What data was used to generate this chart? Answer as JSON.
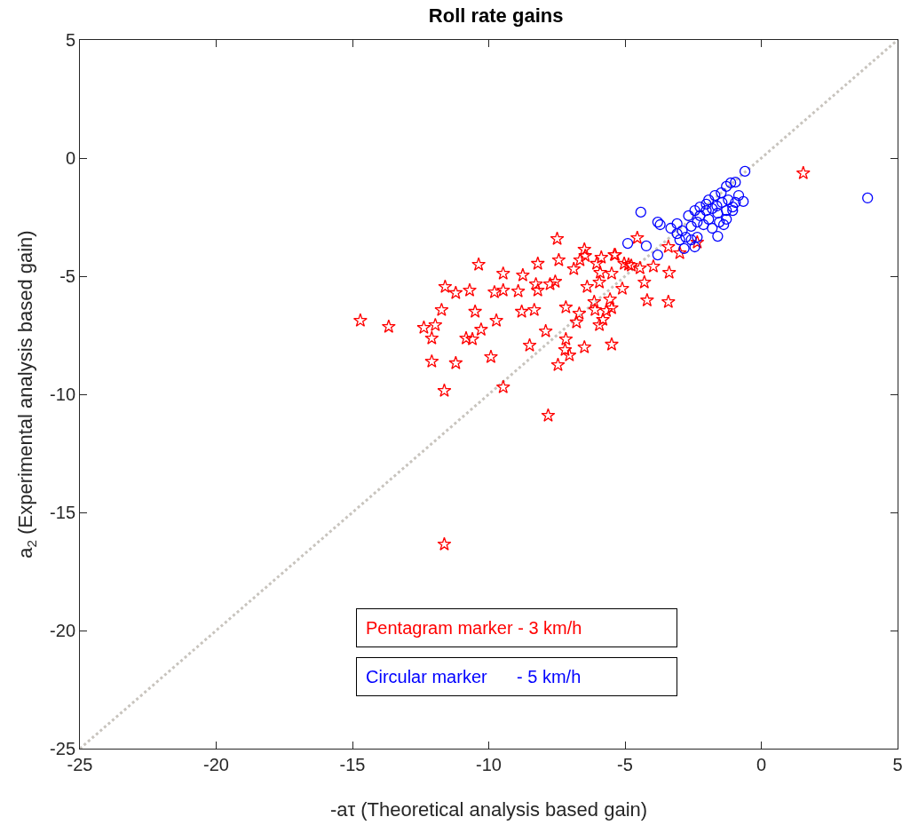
{
  "chart_data": {
    "type": "scatter",
    "title": "Roll rate gains",
    "xlabel": "-aτ (Theoretical analysis based gain)",
    "ylabel": "a$_{2}$ (Experimental analysis based gain)",
    "xlim": [
      -25,
      5
    ],
    "xticks": [
      -25,
      -20,
      -15,
      -10,
      -5,
      0,
      5
    ],
    "ylim": [
      -25,
      5
    ],
    "yticks": [
      -25,
      -20,
      -15,
      -10,
      -5,
      0,
      5
    ],
    "annotations": [
      "Pentagram marker - 3 km/h",
      "Circular marker      - 5 km/h"
    ],
    "series": [
      {
        "type": "line",
        "color": "#c8c4be",
        "line_style": "dotted",
        "marker": "none",
        "x": [
          -25,
          5
        ],
        "values": [
          -25,
          5
        ]
      },
      {
        "color": "#ff0000",
        "marker": "star",
        "x": [
          -14.71,
          -13.67,
          -12.38,
          -11.96,
          -12.09,
          -12.09,
          -11.63,
          -11.63,
          -11.21,
          -11.6,
          -11.21,
          -10.7,
          -11.73,
          -10.5,
          -10.37,
          -10.83,
          -10.6,
          -10.28,
          -9.72,
          -9.92,
          -9.79,
          -9.47,
          -9.47,
          -9.47,
          -8.75,
          -8.92,
          -8.79,
          -8.33,
          -8.27,
          -8.2,
          -8.2,
          -7.49,
          -7.43,
          -7.56,
          -7.75,
          -7.91,
          -8.5,
          -7.17,
          -7.17,
          -7.2,
          -7.04,
          -7.46,
          -7.82,
          -6.49,
          -6.78,
          -6.68,
          -6.88,
          -6.49,
          -6.46,
          -6.65,
          -6.39,
          -6.04,
          -5.87,
          -5.91,
          -5.94,
          -6.13,
          -6.1,
          -5.94,
          -5.81,
          -5.68,
          -5.55,
          -5.49,
          -5.49,
          -5.39,
          -5.1,
          -5.49,
          -5.03,
          -4.77,
          1.54,
          -4.55,
          -5.36,
          -2.99,
          -3.41,
          -2.35,
          -4.87,
          -3.96,
          -3.38,
          -4.29,
          -4.19,
          -3.41,
          -4.45
        ],
        "values": [
          -6.88,
          -7.14,
          -7.18,
          -7.07,
          -7.63,
          -8.61,
          -9.85,
          -16.35,
          -8.68,
          -5.45,
          -5.71,
          -5.6,
          -6.43,
          -6.5,
          -4.51,
          -7.63,
          -7.67,
          -7.26,
          -6.88,
          -8.42,
          -5.68,
          -5.6,
          -4.89,
          -9.7,
          -4.96,
          -5.64,
          -6.5,
          -6.43,
          -5.34,
          -4.47,
          -5.6,
          -3.42,
          -4.32,
          -5.23,
          -5.34,
          -7.33,
          -7.93,
          -6.32,
          -7.67,
          -8.12,
          -8.35,
          -8.76,
          -10.9,
          -8.01,
          -6.95,
          -6.58,
          -4.7,
          -3.87,
          -4.14,
          -4.32,
          -5.45,
          -4.47,
          -4.21,
          -4.85,
          -5.26,
          -6.09,
          -6.43,
          -7.07,
          -6.84,
          -6.47,
          -5.98,
          -6.35,
          -4.89,
          -4.1,
          -5.53,
          -7.89,
          -4.47,
          -4.55,
          -0.64,
          -3.38,
          -4.1,
          -4.02,
          -3.76,
          -3.57,
          -4.51,
          -4.59,
          -4.85,
          -5.26,
          -6.02,
          -6.09,
          -4.66
        ]
      },
      {
        "color": "#0000ff",
        "marker": "circle",
        "x": [
          -0.6,
          -4.42,
          -3.8,
          -3.71,
          -4.9,
          -4.22,
          -3.8,
          -1.6,
          -1.38,
          -2.83,
          -2.44,
          3.9,
          -3.32,
          -3.09,
          -2.67,
          -2.44,
          -2.25,
          -1.93,
          -1.7,
          -1.47,
          -1.28,
          -1.12,
          -0.95,
          -0.83,
          -0.66,
          -1.05,
          -1.28,
          -1.6,
          -1.93,
          -2.12,
          -2.35,
          -2.57,
          -2.9,
          -3.09,
          -2.57,
          -2.35,
          -1.8,
          -1.54,
          -1.28,
          -1.05,
          -1.44,
          -1.63,
          -2.02,
          -2.25,
          -2.77,
          -2.99,
          -2.02,
          -1.8,
          -1.21,
          -0.95
        ],
        "values": [
          -0.56,
          -2.29,
          -2.71,
          -2.82,
          -3.61,
          -3.72,
          -4.1,
          -3.31,
          -2.82,
          -3.83,
          -3.76,
          -1.69,
          -2.97,
          -2.78,
          -2.44,
          -2.22,
          -2.07,
          -1.77,
          -1.58,
          -1.47,
          -1.2,
          -1.05,
          -1.02,
          -1.58,
          -1.84,
          -2.07,
          -2.22,
          -2.33,
          -2.59,
          -2.82,
          -2.71,
          -2.89,
          -3.08,
          -3.2,
          -3.46,
          -3.35,
          -2.97,
          -2.71,
          -2.59,
          -2.22,
          -1.88,
          -2.03,
          -2.22,
          -2.44,
          -3.35,
          -3.46,
          -1.95,
          -2.14,
          -1.77,
          -1.88
        ]
      }
    ]
  }
}
